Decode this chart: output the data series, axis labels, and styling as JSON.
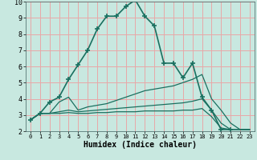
{
  "xlabel": "Humidex (Indice chaleur)",
  "bg_color": "#c8e8e0",
  "line_color": "#1a7060",
  "grid_color": "#e8a8a8",
  "xlim": [
    -0.5,
    23.5
  ],
  "ylim": [
    2,
    10
  ],
  "yticks": [
    2,
    3,
    4,
    5,
    6,
    7,
    8,
    9,
    10
  ],
  "xticks": [
    0,
    1,
    2,
    3,
    4,
    5,
    6,
    7,
    8,
    9,
    10,
    11,
    12,
    13,
    14,
    15,
    16,
    17,
    18,
    19,
    20,
    21,
    22,
    23
  ],
  "series": [
    {
      "x": [
        0,
        1,
        2,
        3,
        4,
        5,
        6,
        7,
        8,
        9,
        10,
        11,
        12,
        13,
        14,
        15,
        16,
        17,
        18,
        19,
        20,
        21
      ],
      "y": [
        2.7,
        3.1,
        3.8,
        4.1,
        5.2,
        6.1,
        7.0,
        8.3,
        9.1,
        9.1,
        9.7,
        10.1,
        9.1,
        8.5,
        6.2,
        6.2,
        5.3,
        6.2,
        4.1,
        3.3,
        2.1,
        2.1
      ],
      "marker": "+",
      "markersize": 4,
      "linewidth": 1.2
    },
    {
      "x": [
        0,
        1,
        2,
        3,
        4,
        5,
        6,
        7,
        8,
        9,
        10,
        11,
        12,
        13,
        14,
        15,
        16,
        17,
        18,
        19,
        20,
        21,
        22,
        23
      ],
      "y": [
        2.7,
        3.1,
        3.1,
        3.8,
        4.1,
        3.3,
        3.5,
        3.6,
        3.7,
        3.9,
        4.1,
        4.3,
        4.5,
        4.6,
        4.7,
        4.8,
        5.0,
        5.2,
        5.5,
        4.0,
        3.3,
        2.5,
        2.1,
        2.1
      ],
      "marker": null,
      "markersize": 0,
      "linewidth": 0.9
    },
    {
      "x": [
        0,
        1,
        2,
        3,
        4,
        5,
        6,
        7,
        8,
        9,
        10,
        11,
        12,
        13,
        14,
        15,
        16,
        17,
        18,
        19,
        20,
        21,
        22,
        23
      ],
      "y": [
        2.7,
        3.1,
        3.1,
        3.2,
        3.3,
        3.2,
        3.25,
        3.3,
        3.35,
        3.4,
        3.45,
        3.5,
        3.55,
        3.6,
        3.65,
        3.7,
        3.75,
        3.85,
        4.0,
        3.3,
        2.5,
        2.1,
        2.1,
        2.1
      ],
      "marker": null,
      "markersize": 0,
      "linewidth": 0.9
    },
    {
      "x": [
        0,
        1,
        2,
        3,
        4,
        5,
        6,
        7,
        8,
        9,
        10,
        11,
        12,
        13,
        14,
        15,
        16,
        17,
        18,
        19,
        20,
        21,
        22,
        23
      ],
      "y": [
        2.7,
        3.1,
        3.1,
        3.1,
        3.15,
        3.1,
        3.1,
        3.15,
        3.15,
        3.2,
        3.2,
        3.2,
        3.25,
        3.25,
        3.25,
        3.25,
        3.3,
        3.3,
        3.4,
        2.9,
        2.2,
        2.1,
        2.1,
        2.1
      ],
      "marker": null,
      "markersize": 0,
      "linewidth": 0.9
    }
  ]
}
